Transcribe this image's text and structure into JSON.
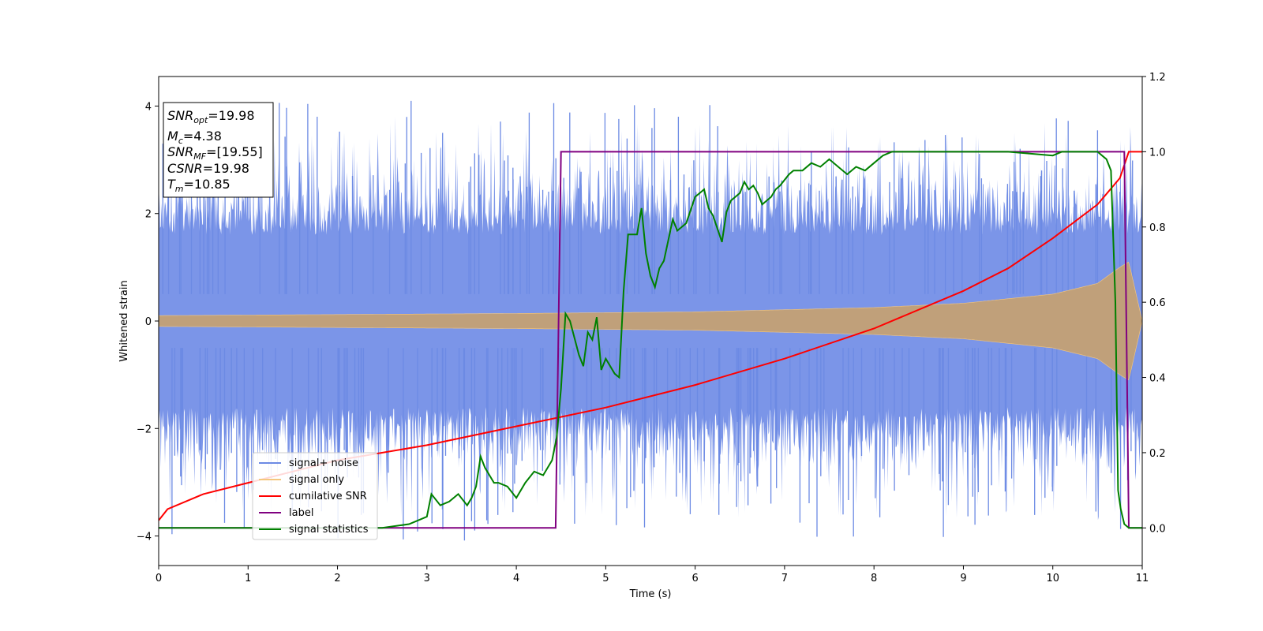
{
  "chart_data": {
    "type": "line",
    "xlabel": "Time (s)",
    "ylabel": "Whitened strain",
    "xlim": [
      0,
      11
    ],
    "ylim_left": [
      -4.55,
      4.55
    ],
    "ylim_right": [
      -0.1,
      1.2
    ],
    "xticks": [
      "0",
      "1",
      "2",
      "3",
      "4",
      "5",
      "6",
      "7",
      "8",
      "9",
      "10",
      "11"
    ],
    "yticks_left": [
      "−4",
      "−2",
      "0",
      "2",
      "4"
    ],
    "yticks_right": [
      "0.0",
      "0.2",
      "0.4",
      "0.6",
      "0.8",
      "1.0",
      "1.2"
    ],
    "grid": false,
    "legend_position": "lower-left",
    "legend": [
      {
        "name": "signal+ noise",
        "color": "#6c8ae4"
      },
      {
        "name": "signal only",
        "color": "#f5c77e"
      },
      {
        "name": "cumilative SNR",
        "color": "#ff0000"
      },
      {
        "name": "label",
        "color": "#800080"
      },
      {
        "name": "signal statistics",
        "color": "#008000"
      }
    ],
    "info_box": {
      "snr_opt": {
        "main": "SNR",
        "sub": "opt",
        "value": "=19.98"
      },
      "mc": {
        "main": "M",
        "sub": "c",
        "value": "=4.38"
      },
      "snr_mf": {
        "main": "SNR",
        "sub": "MF",
        "value": "=[19.55]"
      },
      "csnr": {
        "main": "CSNR",
        "value": "=19.98"
      },
      "tm": {
        "main": "T",
        "sub": "m",
        "value": "=10.85"
      }
    },
    "series": [
      {
        "name": "signal+ noise",
        "axis": "left",
        "color": "#6c8ae4",
        "description_range": [
          -4.2,
          4.1
        ],
        "noise_std": 1.0
      },
      {
        "name": "signal only",
        "axis": "left",
        "color": "#f5c77e",
        "envelope": {
          "x": [
            0,
            2,
            4,
            6,
            8,
            9,
            10,
            10.5,
            10.75,
            10.85,
            11
          ],
          "amp": [
            0.1,
            0.12,
            0.14,
            0.17,
            0.25,
            0.33,
            0.5,
            0.7,
            1.0,
            1.1,
            0.0
          ]
        }
      },
      {
        "name": "cumilative SNR",
        "axis": "right",
        "color": "#ff0000",
        "x": [
          0,
          0.1,
          0.5,
          1,
          2,
          3,
          4,
          5,
          6,
          7,
          8,
          9,
          9.5,
          10,
          10.5,
          10.75,
          10.85,
          11
        ],
        "y": [
          0.02,
          0.05,
          0.09,
          0.12,
          0.18,
          0.22,
          0.27,
          0.32,
          0.38,
          0.45,
          0.53,
          0.63,
          0.69,
          0.77,
          0.86,
          0.93,
          1.0,
          1.0
        ]
      },
      {
        "name": "label",
        "axis": "right",
        "color": "#800080",
        "x": [
          0,
          4.44,
          4.5,
          10.8,
          10.85,
          11
        ],
        "y": [
          0.0,
          0.0,
          1.0,
          1.0,
          0.0,
          0.0
        ]
      },
      {
        "name": "signal statistics",
        "axis": "right",
        "color": "#008000",
        "x": [
          0,
          0.5,
          1,
          1.5,
          2,
          2.5,
          2.8,
          2.9,
          3.0,
          3.05,
          3.15,
          3.25,
          3.35,
          3.45,
          3.5,
          3.55,
          3.6,
          3.65,
          3.75,
          3.8,
          3.9,
          4.0,
          4.1,
          4.2,
          4.3,
          4.4,
          4.45,
          4.5,
          4.55,
          4.6,
          4.7,
          4.75,
          4.8,
          4.85,
          4.9,
          4.95,
          5.0,
          5.1,
          5.15,
          5.2,
          5.25,
          5.35,
          5.4,
          5.45,
          5.5,
          5.55,
          5.6,
          5.65,
          5.75,
          5.8,
          5.9,
          6.0,
          6.1,
          6.15,
          6.2,
          6.3,
          6.35,
          6.4,
          6.5,
          6.55,
          6.6,
          6.65,
          6.7,
          6.75,
          6.85,
          6.9,
          6.95,
          7.05,
          7.1,
          7.2,
          7.3,
          7.4,
          7.5,
          7.6,
          7.7,
          7.8,
          7.9,
          8.0,
          8.1,
          8.2,
          8.3,
          8.5,
          9.0,
          9.5,
          10.0,
          10.1,
          10.3,
          10.5,
          10.6,
          10.65,
          10.7,
          10.73,
          10.76,
          10.8,
          10.85,
          11.0
        ],
        "y": [
          0.0,
          0.0,
          0.0,
          0.0,
          0.0,
          0.0,
          0.01,
          0.02,
          0.03,
          0.09,
          0.06,
          0.07,
          0.09,
          0.06,
          0.08,
          0.11,
          0.19,
          0.16,
          0.12,
          0.12,
          0.11,
          0.08,
          0.12,
          0.15,
          0.14,
          0.18,
          0.24,
          0.37,
          0.57,
          0.55,
          0.46,
          0.43,
          0.52,
          0.5,
          0.56,
          0.42,
          0.45,
          0.41,
          0.4,
          0.63,
          0.78,
          0.78,
          0.85,
          0.73,
          0.67,
          0.64,
          0.69,
          0.71,
          0.82,
          0.79,
          0.81,
          0.88,
          0.9,
          0.85,
          0.83,
          0.76,
          0.84,
          0.87,
          0.89,
          0.92,
          0.9,
          0.91,
          0.89,
          0.86,
          0.88,
          0.9,
          0.91,
          0.94,
          0.95,
          0.95,
          0.97,
          0.96,
          0.98,
          0.96,
          0.94,
          0.96,
          0.95,
          0.97,
          0.99,
          1.0,
          1.0,
          1.0,
          1.0,
          1.0,
          0.99,
          1.0,
          1.0,
          1.0,
          0.98,
          0.95,
          0.6,
          0.1,
          0.05,
          0.01,
          0.0,
          0.0
        ]
      }
    ]
  }
}
